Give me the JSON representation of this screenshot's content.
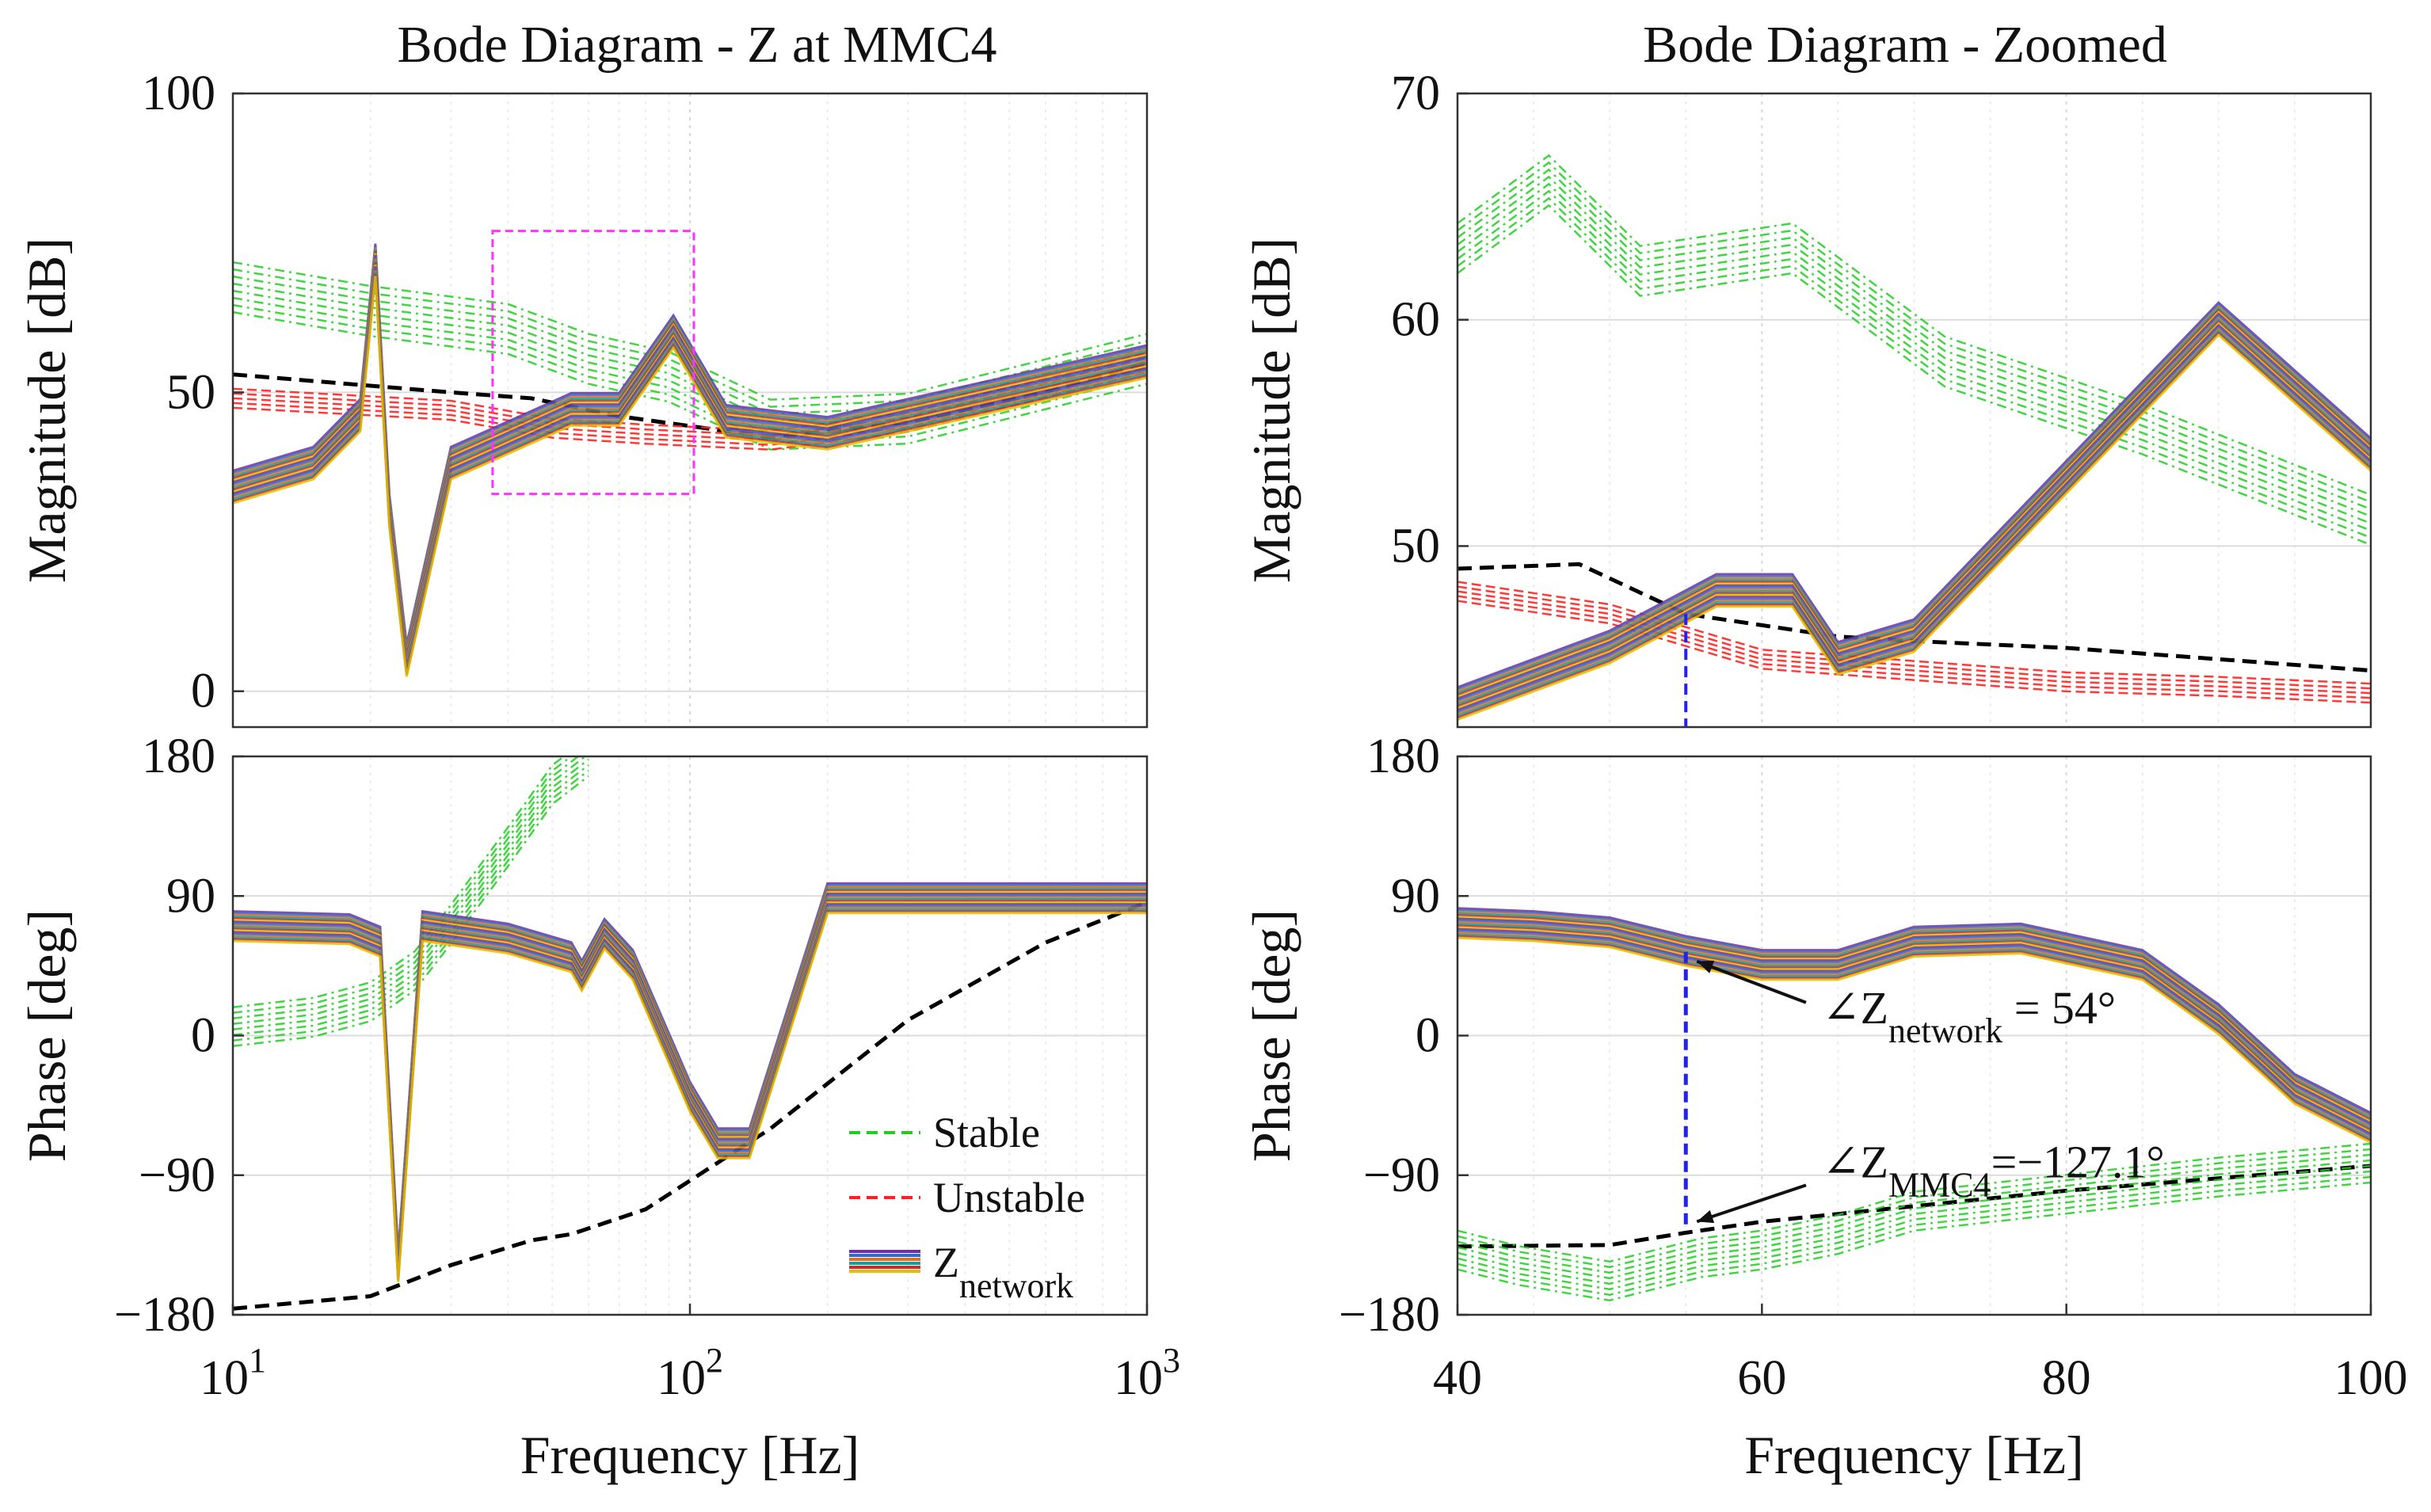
{
  "chart_data": [
    {
      "id": "left",
      "title": "Bode Diagram - Z at MMC4",
      "type": "line",
      "xscale": "log",
      "xlabel": "Frequency [Hz]",
      "xlim": [
        10,
        1000
      ],
      "xticks": [
        {
          "value": 10,
          "base": "10",
          "exp": "1"
        },
        {
          "value": 100,
          "base": "10",
          "exp": "2"
        },
        {
          "value": 1000,
          "base": "10",
          "exp": "3"
        }
      ],
      "panels": [
        {
          "id": "magnitude",
          "ylabel": "Magnitude [dB]",
          "ylim": [
            -6,
            100
          ],
          "yticks": [
            {
              "value": 0,
              "label": "0"
            },
            {
              "value": 50,
              "label": "50"
            },
            {
              "value": 100,
              "label": "100"
            }
          ],
          "highlight_box": {
            "x": [
              37,
              102
            ],
            "y": [
              33,
              77
            ],
            "color": "#ff33ff"
          }
        },
        {
          "id": "phase",
          "ylabel": "Phase [deg]",
          "ylim": [
            -180,
            180
          ],
          "yticks": [
            {
              "value": -180,
              "label": "−180"
            },
            {
              "value": -90,
              "label": "−90"
            },
            {
              "value": 0,
              "label": "0"
            },
            {
              "value": 90,
              "label": "90"
            },
            {
              "value": 180,
              "label": "180"
            }
          ]
        }
      ],
      "legend": {
        "position": "lower-right of phase panel",
        "entries": [
          {
            "label": "Stable",
            "color": "#22cc22",
            "style": "dashed"
          },
          {
            "label": "Unstable",
            "color": "#ff2222",
            "style": "dashed"
          },
          {
            "label": "Z",
            "sub": "network",
            "colors": [
              "#7030a0",
              "#2b6cd4",
              "#e07020",
              "#10a0a0",
              "#c03030",
              "#e0c000"
            ],
            "style": "solid"
          }
        ]
      },
      "series": [
        {
          "name": "Z_MMC4 nominal magnitude",
          "panel": "magnitude",
          "color": "#000000",
          "style": "dashed",
          "x": [
            10,
            30,
            45,
            70,
            150,
            300,
            600,
            1000
          ],
          "y": [
            53,
            50,
            49,
            46,
            42.5,
            45,
            50,
            55
          ]
        },
        {
          "name": "Stable (magnitude)",
          "panel": "magnitude",
          "color": "#22cc22",
          "style": "dashed",
          "x": [
            10,
            20,
            40,
            60,
            90,
            150,
            300,
            1000
          ],
          "y": [
            67,
            63,
            60,
            55,
            52,
            44,
            45,
            55
          ]
        },
        {
          "name": "Unstable (magnitude)",
          "panel": "magnitude",
          "color": "#ff2222",
          "style": "dashed",
          "x": [
            10,
            30,
            50,
            80,
            150,
            300,
            1000
          ],
          "y": [
            49,
            47,
            44,
            43,
            42,
            45,
            55
          ]
        },
        {
          "name": "Z_network magnitude",
          "panel": "magnitude",
          "color": "#7030a0",
          "style": "solid",
          "x": [
            10,
            15,
            19,
            20.5,
            22,
            24,
            30,
            45,
            55,
            70,
            92,
            120,
            200,
            1000
          ],
          "y": [
            34,
            38,
            46,
            72,
            30,
            5,
            38,
            44,
            47,
            47,
            60,
            45,
            43,
            55
          ]
        },
        {
          "name": "Z_MMC4 nominal phase",
          "panel": "phase",
          "color": "#000000",
          "style": "dashed",
          "x": [
            10,
            20,
            30,
            45,
            55,
            80,
            150,
            300,
            600,
            1000
          ],
          "y": [
            -176,
            -168,
            -148,
            -132,
            -128,
            -112,
            -60,
            10,
            60,
            86
          ]
        },
        {
          "name": "Stable (phase)",
          "panel": "phase",
          "color": "#22cc22",
          "style": "dashed",
          "x": [
            10,
            15,
            20,
            25,
            30,
            40,
            50,
            60
          ],
          "y": [
            4,
            10,
            20,
            40,
            70,
            120,
            160,
            178
          ]
        },
        {
          "name": "Z_network phase",
          "panel": "phase",
          "color": "#7030a0",
          "style": "solid",
          "x": [
            10,
            18,
            21,
            23,
            26,
            40,
            55,
            58,
            65,
            75,
            100,
            115,
            135,
            200,
            1000
          ],
          "y": [
            70,
            68,
            60,
            -150,
            70,
            62,
            50,
            38,
            65,
            45,
            -40,
            -70,
            -70,
            88,
            88
          ]
        }
      ]
    },
    {
      "id": "right",
      "title": "Bode Diagram - Zoomed",
      "type": "line",
      "xscale": "linear",
      "xlabel": "Frequency [Hz]",
      "xlim": [
        40,
        100
      ],
      "xticks": [
        {
          "value": 40,
          "label": "40"
        },
        {
          "value": 60,
          "label": "60"
        },
        {
          "value": 80,
          "label": "80"
        },
        {
          "value": 100,
          "label": "100"
        }
      ],
      "panels": [
        {
          "id": "magnitude",
          "ylabel": "Magnitude [dB]",
          "ylim": [
            42,
            70
          ],
          "yticks": [
            {
              "value": 50,
              "label": "50"
            },
            {
              "value": 60,
              "label": "60"
            },
            {
              "value": 70,
              "label": "70"
            }
          ]
        },
        {
          "id": "phase",
          "ylabel": "Phase [deg]",
          "ylim": [
            -180,
            180
          ],
          "yticks": [
            {
              "value": -180,
              "label": "−180"
            },
            {
              "value": -90,
              "label": "−90"
            },
            {
              "value": 0,
              "label": "0"
            },
            {
              "value": 90,
              "label": "90"
            },
            {
              "value": 180,
              "label": "180"
            }
          ]
        }
      ],
      "marker_frequency": 55,
      "annotations": [
        {
          "prefix": "∠Z",
          "sub": "network",
          "suffix": " = 54°",
          "x": 55,
          "y": 54
        },
        {
          "prefix": "∠Z",
          "sub": "MMC4",
          "suffix": "=−127.1°",
          "x": 55,
          "y": -127.1
        }
      ],
      "series": [
        {
          "name": "Z_MMC4 nominal magnitude",
          "panel": "magnitude",
          "color": "#000000",
          "style": "dashed",
          "x": [
            40,
            48,
            55,
            60,
            65,
            70,
            80,
            90,
            100
          ],
          "y": [
            49,
            49.2,
            47,
            46.5,
            46,
            45.8,
            45.5,
            45,
            44.5
          ]
        },
        {
          "name": "Unstable (magnitude)",
          "panel": "magnitude",
          "color": "#ff2222",
          "style": "dashed",
          "x": [
            40,
            50,
            60,
            70,
            80,
            90,
            100
          ],
          "y": [
            48,
            47,
            45,
            44.5,
            44,
            43.8,
            43.5
          ]
        },
        {
          "name": "Stable (magnitude)",
          "panel": "magnitude",
          "color": "#22cc22",
          "style": "dashed",
          "x": [
            40,
            46,
            52,
            62,
            72,
            85,
            100
          ],
          "y": [
            63,
            66,
            62,
            63,
            58,
            55,
            51
          ]
        },
        {
          "name": "Z_network magnitude",
          "panel": "magnitude",
          "color": "#7030a0",
          "style": "solid",
          "x": [
            40,
            50,
            57,
            62,
            65,
            70,
            80,
            90,
            100
          ],
          "y": [
            43,
            45.5,
            48,
            48,
            45,
            46,
            53,
            60,
            54
          ]
        },
        {
          "name": "Z_MMC4 nominal phase",
          "panel": "phase",
          "color": "#000000",
          "style": "dashed",
          "x": [
            40,
            50,
            55,
            60,
            70,
            80,
            90,
            100
          ],
          "y": [
            -136,
            -135,
            -127.1,
            -120,
            -110,
            -100,
            -92,
            -84
          ]
        },
        {
          "name": "Stable (phase)",
          "panel": "phase",
          "color": "#22cc22",
          "style": "dashed",
          "x": [
            40,
            44,
            50,
            56,
            60,
            65,
            70,
            80,
            90,
            100
          ],
          "y": [
            -140,
            -150,
            -160,
            -145,
            -140,
            -130,
            -115,
            -104,
            -93,
            -84
          ]
        },
        {
          "name": "Z_network phase",
          "panel": "phase",
          "color": "#7030a0",
          "style": "solid",
          "x": [
            40,
            45,
            50,
            55,
            60,
            65,
            70,
            77,
            85,
            90,
            95,
            100
          ],
          "y": [
            72,
            70,
            66,
            54,
            45,
            45,
            60,
            62,
            45,
            10,
            -35,
            -60
          ]
        }
      ]
    }
  ]
}
